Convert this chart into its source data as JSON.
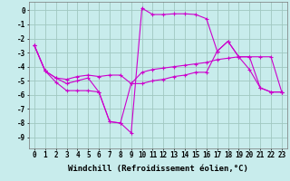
{
  "background_color": "#c8ecec",
  "grid_color": "#a0c8c0",
  "line_color": "#cc00cc",
  "xlabel": "Windchill (Refroidissement éolien,°C)",
  "xlabel_fontsize": 6.5,
  "tick_fontsize": 5.5,
  "xlim": [
    -0.5,
    23.5
  ],
  "ylim": [
    -9.8,
    0.6
  ],
  "yticks": [
    0,
    -1,
    -2,
    -3,
    -4,
    -5,
    -6,
    -7,
    -8,
    -9
  ],
  "xticks": [
    0,
    1,
    2,
    3,
    4,
    5,
    6,
    7,
    8,
    9,
    10,
    11,
    12,
    13,
    14,
    15,
    16,
    17,
    18,
    19,
    20,
    21,
    22,
    23
  ],
  "series1_x": [
    0,
    1,
    2,
    3,
    4,
    5,
    6,
    7,
    8,
    9,
    10,
    11,
    12,
    13,
    14,
    15,
    16,
    17,
    18,
    19,
    20,
    21,
    22,
    23
  ],
  "series1_y": [
    -2.5,
    -4.3,
    -4.8,
    -5.2,
    -5.0,
    -4.8,
    -5.8,
    -7.9,
    -8.0,
    -8.7,
    0.15,
    -0.3,
    -0.3,
    -0.25,
    -0.25,
    -0.3,
    -0.6,
    -2.9,
    -2.2,
    -3.3,
    -4.2,
    -5.5,
    -5.8,
    -5.8
  ],
  "series2_x": [
    0,
    1,
    2,
    3,
    4,
    5,
    6,
    7,
    8,
    9,
    10,
    11,
    12,
    13,
    14,
    15,
    16,
    17,
    18,
    19,
    20,
    21,
    22,
    23
  ],
  "series2_y": [
    -2.5,
    -4.3,
    -4.8,
    -4.9,
    -4.7,
    -4.6,
    -4.7,
    -4.6,
    -4.6,
    -5.2,
    -4.4,
    -4.2,
    -4.1,
    -4.0,
    -3.9,
    -3.8,
    -3.7,
    -3.5,
    -3.4,
    -3.3,
    -3.3,
    -3.3,
    -3.3,
    -5.8
  ],
  "series3_x": [
    0,
    1,
    2,
    3,
    4,
    5,
    6,
    7,
    8,
    9,
    10,
    11,
    12,
    13,
    14,
    15,
    16,
    17,
    18,
    19,
    20,
    21,
    22,
    23
  ],
  "series3_y": [
    -2.5,
    -4.3,
    -5.1,
    -5.7,
    -5.7,
    -5.7,
    -5.8,
    -7.9,
    -8.0,
    -5.2,
    -5.2,
    -5.0,
    -4.9,
    -4.7,
    -4.6,
    -4.4,
    -4.4,
    -2.9,
    -2.2,
    -3.3,
    -3.3,
    -5.5,
    -5.8,
    -5.8
  ]
}
